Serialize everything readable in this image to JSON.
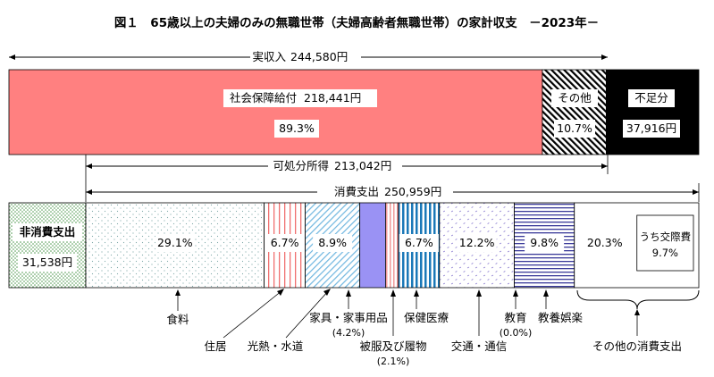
{
  "chart_data": {
    "type": "bar",
    "title": "図１　65歳以上の夫婦のみの無職世帯（夫婦高齢者無職世帯）の家計収支　－2023年－",
    "income": {
      "label": "実収入",
      "value_text": "244,580円",
      "value": 244580,
      "segments": [
        {
          "label": "社会保障給付",
          "value_text": "218,441円",
          "value": 218441,
          "percent_text": "89.3%",
          "percent": 89.3,
          "color": "#ff8080"
        },
        {
          "label": "その他",
          "value": 26139,
          "percent_text": "10.7%",
          "percent": 10.7,
          "pattern": "diagonal"
        }
      ],
      "deficit": {
        "label": "不足分",
        "value_text": "37,916円",
        "value": 37916,
        "color": "#000000"
      }
    },
    "disposable_income": {
      "label": "可処分所得",
      "value_text": "213,042円",
      "value": 213042
    },
    "expenditure": {
      "label": "消費支出",
      "value_text": "250,959円",
      "value": 250959,
      "non_consumption": {
        "label": "非消費支出",
        "value_text": "31,538円",
        "value": 31538
      },
      "items": [
        {
          "label": "食料",
          "percent": 29.1,
          "percent_text": "29.1%",
          "pattern": "dots"
        },
        {
          "label": "住居",
          "percent": 6.7,
          "percent_text": "6.7%",
          "pattern": "vlines-red"
        },
        {
          "label": "光熱・水道",
          "percent": 8.9,
          "percent_text": "8.9%",
          "pattern": "diag-blue"
        },
        {
          "label": "家具・家事用品",
          "percent": 4.2,
          "percent_text": "(4.2%)",
          "pattern": "solid-purple"
        },
        {
          "label": "被服及び履物",
          "percent": 2.1,
          "percent_text": "(2.1%)",
          "pattern": "vlines-pink"
        },
        {
          "label": "保健医療",
          "percent": 6.7,
          "percent_text": "6.7%",
          "pattern": "vlines-blue"
        },
        {
          "label": "交通・通信",
          "percent": 12.2,
          "percent_text": "12.2%",
          "pattern": "dash-purple"
        },
        {
          "label": "教育",
          "percent": 0.0,
          "percent_text": "(0.0%)",
          "pattern": "none"
        },
        {
          "label": "教養娯楽",
          "percent": 9.8,
          "percent_text": "9.8%",
          "pattern": "hlines-navy"
        },
        {
          "label": "その他の消費支出",
          "percent": 20.3,
          "percent_text": "20.3%",
          "pattern": "none",
          "sub_label": "うち交際費",
          "sub_percent": 9.7,
          "sub_percent_text": "9.7%"
        }
      ]
    }
  }
}
